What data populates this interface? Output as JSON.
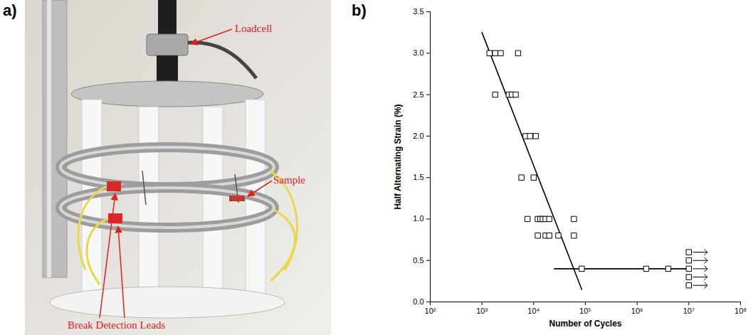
{
  "panel_a": {
    "letter": "a)",
    "type": "photo",
    "labels": [
      "Loadcell",
      "Sample",
      "Break Detection Leads"
    ]
  },
  "chart_data": {
    "type": "scatter",
    "panel_label": "b)",
    "x_label": "Number of Cycles",
    "y_label": "Half Alternating Strain (%)",
    "log": "x",
    "grid": false,
    "xlim": [
      100,
      100000000
    ],
    "xticks": [
      {
        "value": 100,
        "label": "10²"
      },
      {
        "value": 1000,
        "label": "10³"
      },
      {
        "value": 10000,
        "label": "10⁴"
      },
      {
        "value": 100000,
        "label": "10⁵"
      },
      {
        "value": 1000000,
        "label": "10⁶"
      },
      {
        "value": 10000000,
        "label": "10⁷"
      },
      {
        "value": 100000000,
        "label": "10⁸"
      }
    ],
    "ylim": [
      0,
      3.5
    ],
    "yticks": [
      {
        "value": 0,
        "label": "0.0"
      },
      0.5,
      {
        "value": 1,
        "label": "1.0"
      },
      1.5,
      {
        "value": 2,
        "label": "2.0"
      },
      2.5,
      {
        "value": 3,
        "label": "3.0"
      },
      3.5
    ],
    "series": [
      {
        "type": "line",
        "line_style": "solid",
        "color": "#000000",
        "x": [
          1000,
          85000
        ],
        "values": [
          3.25,
          0.15
        ]
      },
      {
        "type": "line",
        "line_style": "solid",
        "color": "#000000",
        "x": [
          25000,
          10000000
        ],
        "values": [
          0.4,
          0.4
        ]
      },
      {
        "type": "scatter",
        "marker": "square",
        "color": "#000000",
        "x": [
          1400,
          1800,
          2300,
          5000,
          1800,
          3300,
          3800,
          4500,
          7000,
          8500,
          11000,
          5800,
          10000,
          7600,
          12000,
          13500,
          15000,
          17000,
          20000,
          60000,
          12000,
          17000,
          20000,
          30000,
          60000,
          85000,
          1500000,
          4000000
        ],
        "values": [
          3,
          3,
          3,
          3,
          2.5,
          2.5,
          2.5,
          2.5,
          2,
          2,
          2,
          1.5,
          1.5,
          1,
          1,
          1,
          1,
          1,
          1,
          1,
          0.8,
          0.8,
          0.8,
          0.8,
          0.8,
          0.4,
          0.4,
          0.4
        ]
      },
      {
        "type": "scatter",
        "marker": "square_arrow",
        "color": "#000000",
        "x": [
          10000000,
          10000000,
          10000000,
          10000000,
          10000000
        ],
        "values": [
          0.6,
          0.5,
          0.4,
          0.3,
          0.2
        ]
      }
    ]
  }
}
